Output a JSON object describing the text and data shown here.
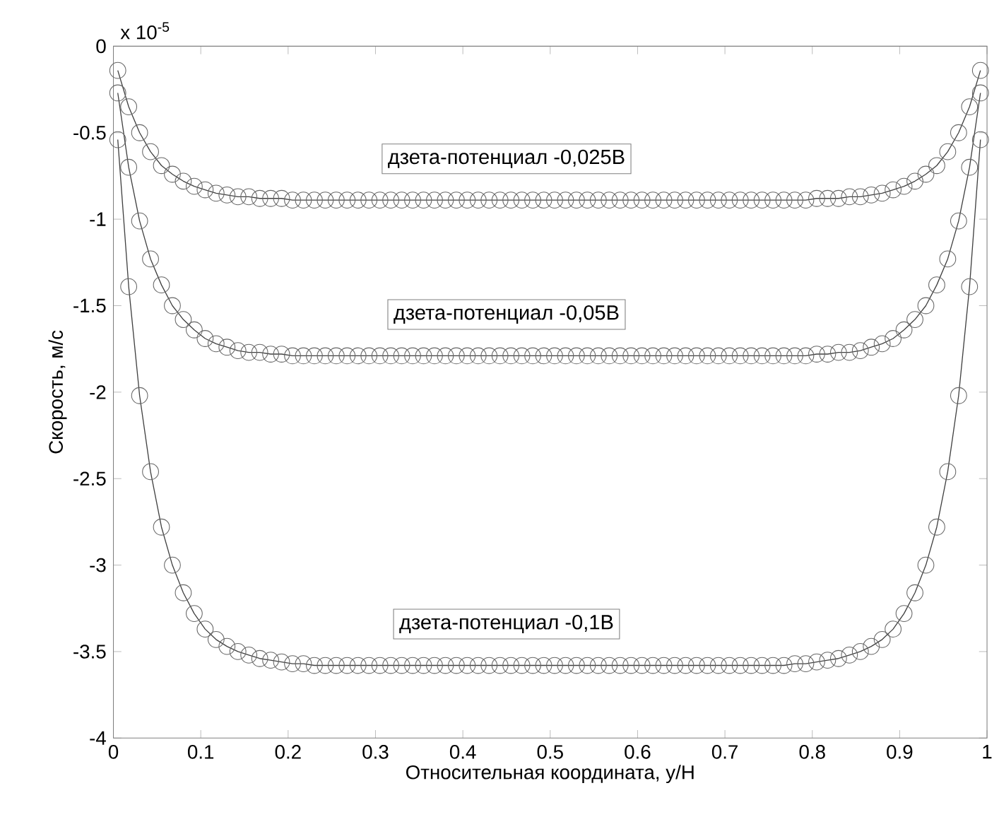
{
  "chart_data": {
    "type": "line",
    "xlabel": "Относительная координата, y/H",
    "ylabel": "Скорость, м/с",
    "annotations": [
      "x 10$^{-5}$"
    ],
    "xlim": [
      0,
      1
    ],
    "ylim": [
      -4,
      0
    ],
    "xticks": [
      0,
      0.1,
      0.2,
      0.3,
      0.4,
      0.5,
      0.6,
      0.7,
      0.8,
      0.9,
      1
    ],
    "yticks": [
      -4,
      -3.5,
      -3,
      -2.5,
      -2,
      -1.5,
      -1,
      -0.5,
      0
    ],
    "marker": "circle",
    "line_style": "solid",
    "x": [
      0.005,
      0.0175,
      0.03,
      0.0425,
      0.055,
      0.0675,
      0.08,
      0.0925,
      0.105,
      0.1175,
      0.13,
      0.1425,
      0.155,
      0.1675,
      0.18,
      0.1925,
      0.205,
      0.2175,
      0.23,
      0.2425,
      0.255,
      0.2675,
      0.28,
      0.2925,
      0.305,
      0.3175,
      0.33,
      0.3425,
      0.355,
      0.3675,
      0.38,
      0.3925,
      0.405,
      0.4175,
      0.43,
      0.4425,
      0.455,
      0.4675,
      0.48,
      0.4925,
      0.505,
      0.5175,
      0.53,
      0.5425,
      0.555,
      0.5675,
      0.58,
      0.5925,
      0.605,
      0.6175,
      0.63,
      0.6425,
      0.655,
      0.6675,
      0.68,
      0.6925,
      0.705,
      0.7175,
      0.73,
      0.7425,
      0.755,
      0.7675,
      0.78,
      0.7925,
      0.805,
      0.8175,
      0.83,
      0.8425,
      0.855,
      0.8675,
      0.88,
      0.8925,
      0.905,
      0.9175,
      0.93,
      0.9425,
      0.955,
      0.9675,
      0.98,
      0.9925
    ],
    "series": [
      {
        "name": "дзета-потенциал -0,025В",
        "color": "#404040",
        "values": [
          -0.14,
          -0.35,
          -0.5,
          -0.61,
          -0.69,
          -0.74,
          -0.78,
          -0.81,
          -0.83,
          -0.85,
          -0.86,
          -0.87,
          -0.87,
          -0.88,
          -0.88,
          -0.88,
          -0.89,
          -0.89,
          -0.89,
          -0.89,
          -0.89,
          -0.89,
          -0.89,
          -0.89,
          -0.89,
          -0.89,
          -0.89,
          -0.89,
          -0.89,
          -0.89,
          -0.89,
          -0.89,
          -0.89,
          -0.89,
          -0.89,
          -0.89,
          -0.89,
          -0.89,
          -0.89,
          -0.89,
          -0.89,
          -0.89,
          -0.89,
          -0.89,
          -0.89,
          -0.89,
          -0.89,
          -0.89,
          -0.89,
          -0.89,
          -0.89,
          -0.89,
          -0.89,
          -0.89,
          -0.89,
          -0.89,
          -0.89,
          -0.89,
          -0.89,
          -0.89,
          -0.89,
          -0.89,
          -0.89,
          -0.89,
          -0.88,
          -0.88,
          -0.88,
          -0.87,
          -0.87,
          -0.86,
          -0.85,
          -0.83,
          -0.81,
          -0.78,
          -0.74,
          -0.69,
          -0.61,
          -0.5,
          -0.35,
          -0.14
        ]
      },
      {
        "name": "дзета-потенциал -0,05В",
        "color": "#404040",
        "values": [
          -0.27,
          -0.7,
          -1.01,
          -1.23,
          -1.38,
          -1.5,
          -1.58,
          -1.64,
          -1.69,
          -1.72,
          -1.74,
          -1.76,
          -1.77,
          -1.77,
          -1.78,
          -1.78,
          -1.79,
          -1.79,
          -1.79,
          -1.79,
          -1.79,
          -1.79,
          -1.79,
          -1.79,
          -1.79,
          -1.79,
          -1.79,
          -1.79,
          -1.79,
          -1.79,
          -1.79,
          -1.79,
          -1.79,
          -1.79,
          -1.79,
          -1.79,
          -1.79,
          -1.79,
          -1.79,
          -1.79,
          -1.79,
          -1.79,
          -1.79,
          -1.79,
          -1.79,
          -1.79,
          -1.79,
          -1.79,
          -1.79,
          -1.79,
          -1.79,
          -1.79,
          -1.79,
          -1.79,
          -1.79,
          -1.79,
          -1.79,
          -1.79,
          -1.79,
          -1.79,
          -1.79,
          -1.79,
          -1.79,
          -1.79,
          -1.78,
          -1.78,
          -1.77,
          -1.77,
          -1.76,
          -1.74,
          -1.72,
          -1.69,
          -1.64,
          -1.58,
          -1.5,
          -1.38,
          -1.23,
          -1.01,
          -0.7,
          -0.27
        ]
      },
      {
        "name": "дзета-потенциал -0,1В",
        "color": "#404040",
        "values": [
          -0.54,
          -1.39,
          -2.02,
          -2.46,
          -2.78,
          -3.0,
          -3.16,
          -3.28,
          -3.37,
          -3.43,
          -3.47,
          -3.5,
          -3.52,
          -3.54,
          -3.55,
          -3.56,
          -3.57,
          -3.57,
          -3.58,
          -3.58,
          -3.58,
          -3.58,
          -3.58,
          -3.58,
          -3.58,
          -3.58,
          -3.58,
          -3.58,
          -3.58,
          -3.58,
          -3.58,
          -3.58,
          -3.58,
          -3.58,
          -3.58,
          -3.58,
          -3.58,
          -3.58,
          -3.58,
          -3.58,
          -3.58,
          -3.58,
          -3.58,
          -3.58,
          -3.58,
          -3.58,
          -3.58,
          -3.58,
          -3.58,
          -3.58,
          -3.58,
          -3.58,
          -3.58,
          -3.58,
          -3.58,
          -3.58,
          -3.58,
          -3.58,
          -3.58,
          -3.58,
          -3.58,
          -3.58,
          -3.57,
          -3.57,
          -3.56,
          -3.55,
          -3.54,
          -3.52,
          -3.5,
          -3.47,
          -3.43,
          -3.37,
          -3.28,
          -3.16,
          -3.0,
          -2.78,
          -2.46,
          -2.02,
          -1.39,
          -0.54
        ]
      }
    ]
  }
}
